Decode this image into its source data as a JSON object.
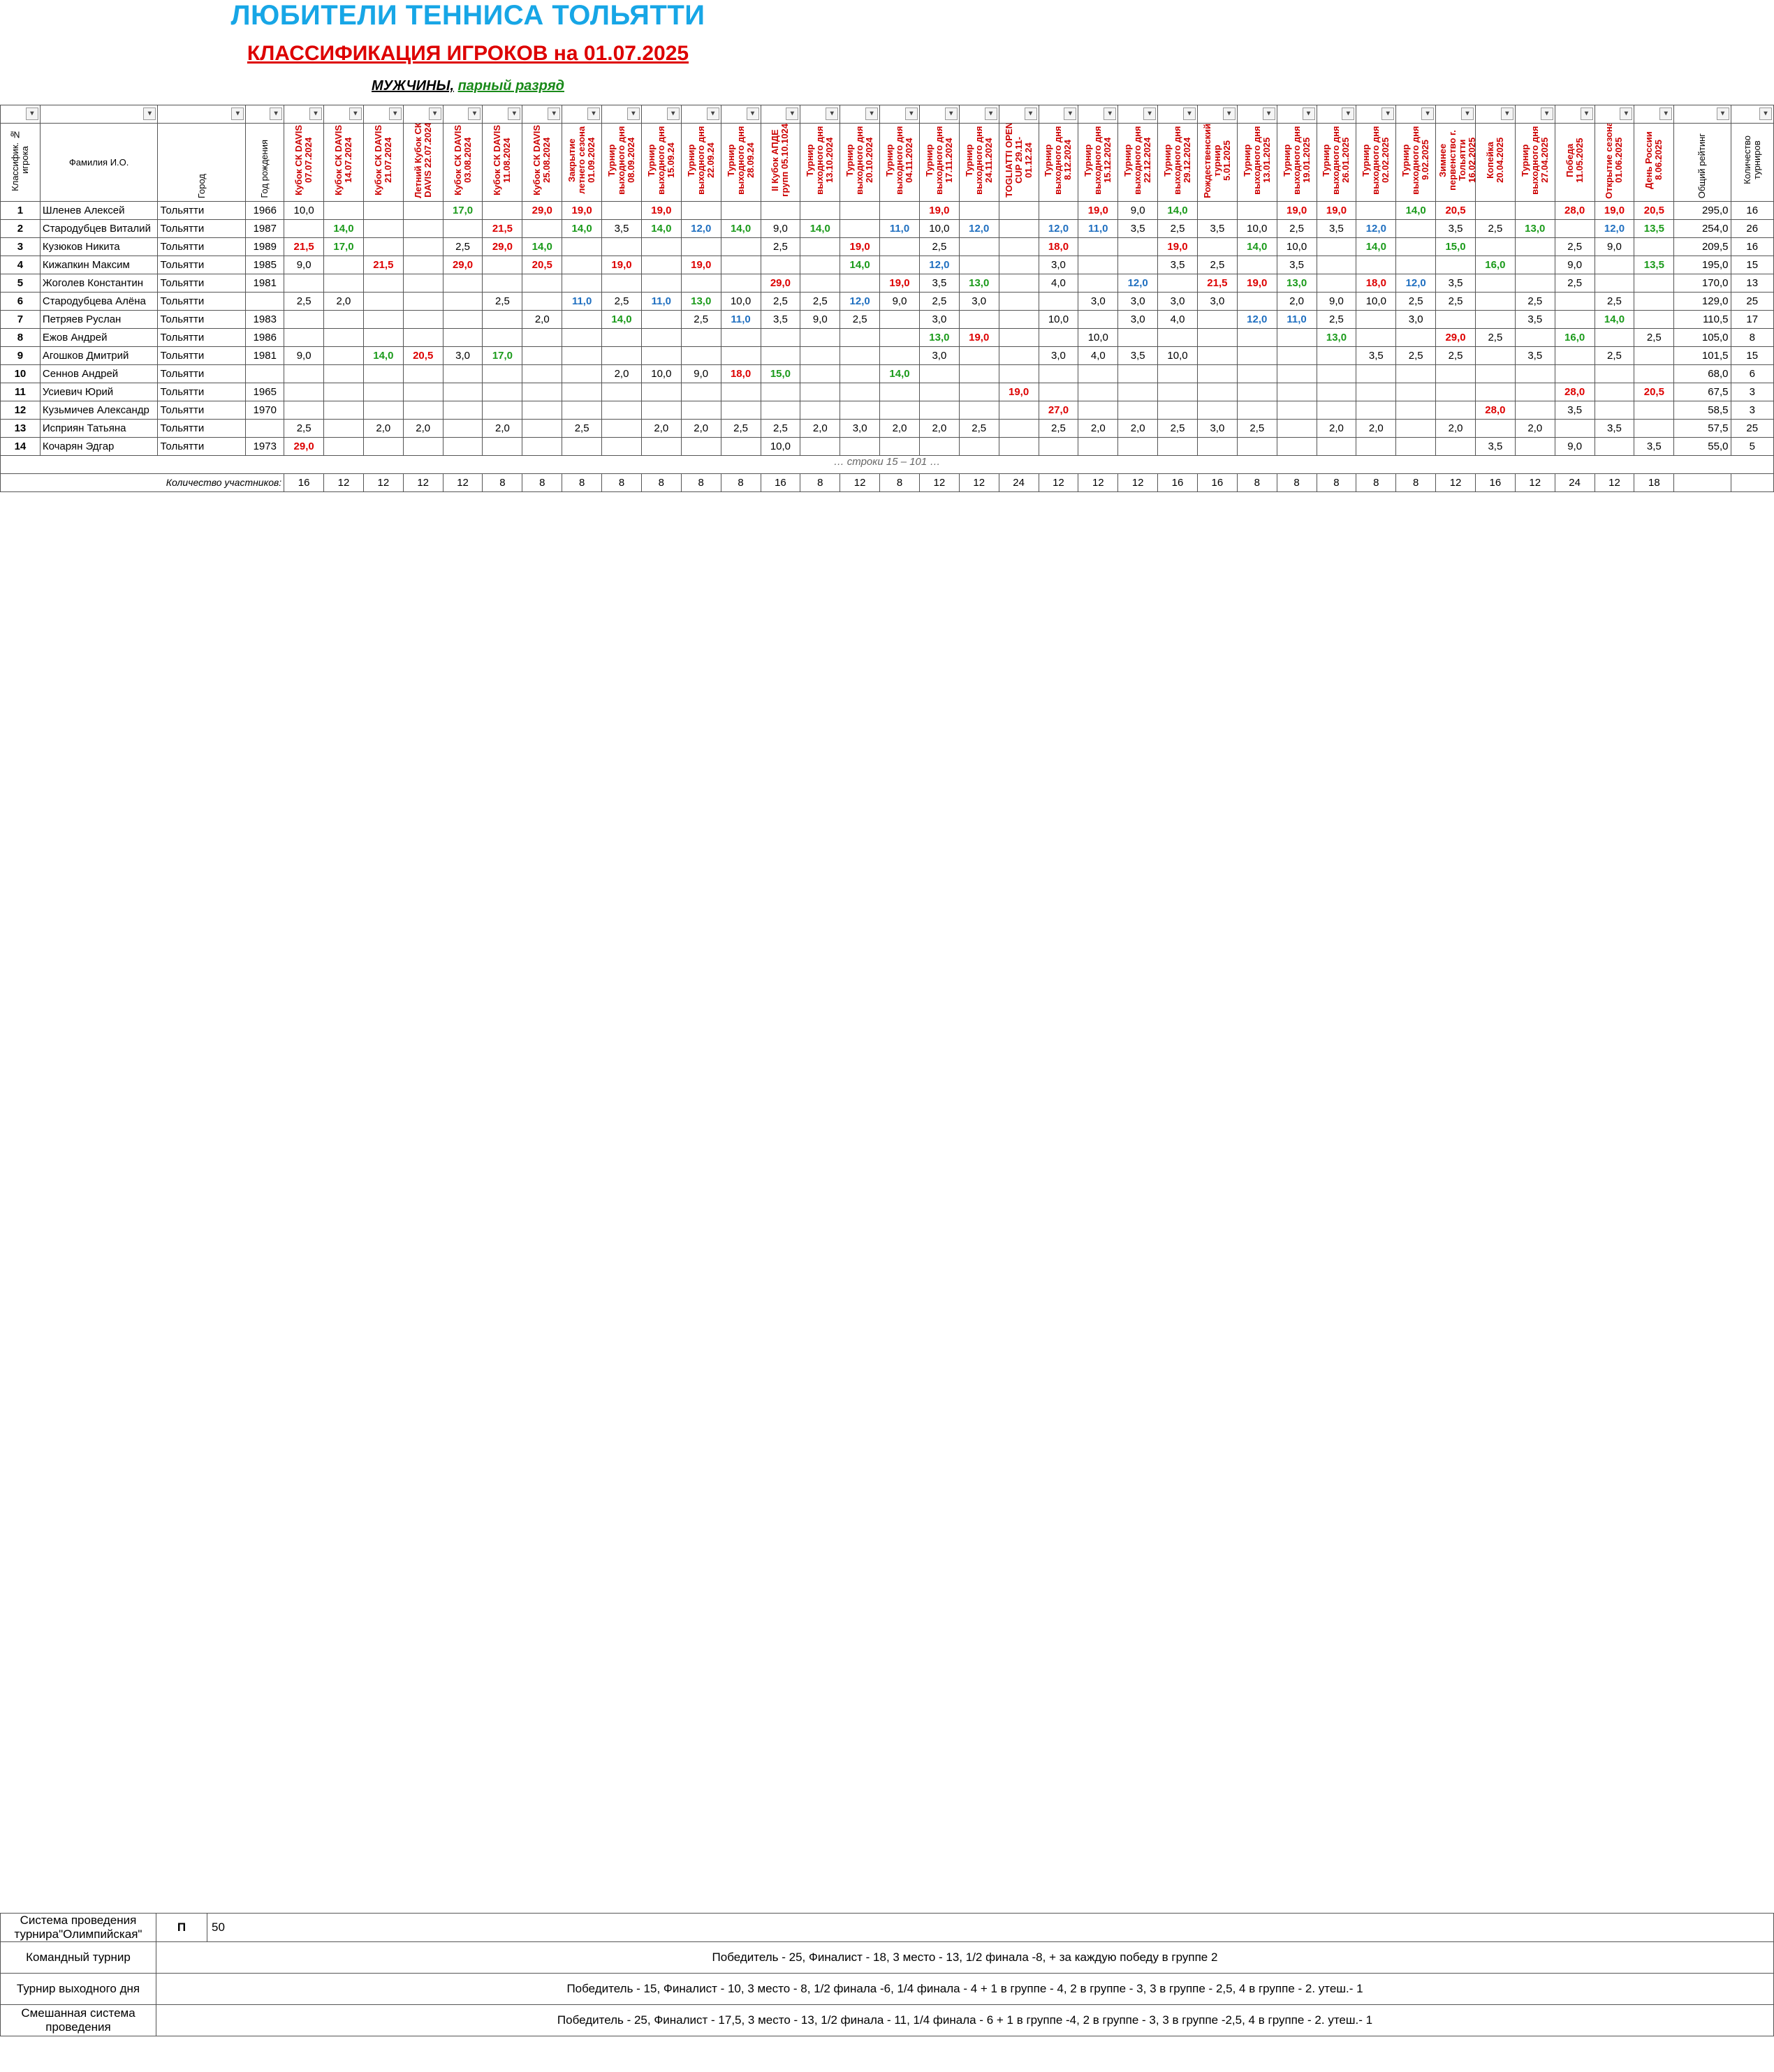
{
  "title": "ЛЮБИТЕЛИ ТЕННИСА ТОЛЬЯТТИ",
  "subtitle": "КЛАССИФИКАЦИЯ ИГРОКОВ на 01.07.2025",
  "section": {
    "category": "МУЖЧИНЫ,",
    "type": "парный разряд"
  },
  "columns": {
    "rank": "Классифик. № игрока",
    "name": "Фамилия И.О.",
    "city": "Город",
    "year": "Год рождения",
    "total": "Общий рейтинг",
    "count": "Количество турниров"
  },
  "tournaments": [
    "Кубок СК DAVIS 07.07.2024",
    "Кубок СК DAVIS 14.07.2024",
    "Кубок СК DAVIS 21.07.2024",
    "Летний Кубок СК DAVIS 22.07.2024",
    "Кубок СК DAVIS 03.08.2024",
    "Кубок СК DAVIS 11.08.2024",
    "Кубок СК DAVIS 25.08.2024",
    "Закрытие летнего сезона 01.09.2024",
    "Турнир выходного дня 08.09.2024",
    "Турнир выходного дня 15.09.24",
    "Турнир выходного дня 22.09.24",
    "Турнир выходного дня 28.09.24",
    "II Кубок АПДЕ групп 05.10.1024",
    "Турнир выходного дня 13.10.2024",
    "Турнир выходного дня 20.10.2024",
    "Турнир выходного дня 04.11.2024",
    "Турнир выходного дня 17.11.2024",
    "Турнир выходного дня 24.11.2024",
    "TOGLIATTI OPEN CUP 29.11-01.12.24",
    "Турнир выходного дня 8.12.2024",
    "Турнир выходного дня 15.12.2024",
    "Турнир выходного дня 22.12.2024",
    "Турнир выходного дня 29.12.2024",
    "Рождественский турнир 5.01.2025",
    "Турнир выходного дня 13.01.2025",
    "Турнир выходного дня 19.01.2025",
    "Турнир выходного дня 26.01.2025",
    "Турнир выходного дня 02.02.2025",
    "Турнир выходного дня 9.02.2025",
    "Зимнее первенство г. Тольятти 16.02.2025",
    "Копейка 20.04.2025",
    "Турнир выходного дня 27.04.2025",
    "Победа 11.05.2025",
    "Открытие сезона 01.06.2025",
    "День России 8.06.2025"
  ],
  "players": [
    {
      "rank": "1",
      "name": "Шленев Алексей",
      "city": "Тольятти",
      "year": "1966",
      "scores": [
        "10,0",
        "",
        "",
        "",
        "17,0",
        "",
        "29,0",
        "19,0",
        "",
        "19,0",
        "",
        "",
        "",
        "",
        "",
        "",
        "19,0",
        "",
        "",
        "",
        "19,0",
        "9,0",
        "14,0",
        "",
        "",
        "19,0",
        "19,0",
        "",
        "14,0",
        "20,5",
        "",
        "",
        "28,0",
        "19,0",
        "20,5"
      ],
      "total": "295,0",
      "count": "16"
    },
    {
      "rank": "2",
      "name": "Стародубцев Виталий",
      "city": "Тольятти",
      "year": "1987",
      "scores": [
        "",
        "14,0",
        "",
        "",
        "",
        "21,5",
        "",
        "14,0",
        "3,5",
        "14,0",
        "12,0",
        "14,0",
        "9,0",
        "14,0",
        "",
        "11,0",
        "10,0",
        "12,0",
        "",
        "12,0",
        "11,0",
        "3,5",
        "2,5",
        "3,5",
        "10,0",
        "2,5",
        "3,5",
        "12,0",
        "",
        "3,5",
        "2,5",
        "13,0",
        "",
        "12,0",
        "13,5"
      ],
      "total": "254,0",
      "count": "26"
    },
    {
      "rank": "3",
      "name": "Кузюков Никита",
      "city": "Тольятти",
      "year": "1989",
      "scores": [
        "21,5",
        "17,0",
        "",
        "",
        "2,5",
        "29,0",
        "14,0",
        "",
        "",
        "",
        "",
        "",
        "2,5",
        "",
        "19,0",
        "",
        "2,5",
        "",
        "",
        "18,0",
        "",
        "",
        "19,0",
        "",
        "14,0",
        "10,0",
        "",
        "14,0",
        "",
        "15,0",
        "",
        "",
        "2,5",
        "9,0",
        ""
      ],
      "total": "209,5",
      "count": "16"
    },
    {
      "rank": "4",
      "name": "Кижапкин Максим",
      "city": "Тольятти",
      "year": "1985",
      "scores": [
        "9,0",
        "",
        "21,5",
        "",
        "29,0",
        "",
        "20,5",
        "",
        "19,0",
        "",
        "19,0",
        "",
        "",
        "",
        "14,0",
        "",
        "12,0",
        "",
        "",
        "3,0",
        "",
        "",
        "3,5",
        "2,5",
        "",
        "3,5",
        "",
        "",
        "",
        "",
        "16,0",
        "",
        "9,0",
        "",
        "13,5"
      ],
      "total": "195,0",
      "count": "15"
    },
    {
      "rank": "5",
      "name": "Жоголев Константин",
      "city": "Тольятти",
      "year": "1981",
      "scores": [
        "",
        "",
        "",
        "",
        "",
        "",
        "",
        "",
        "",
        "",
        "",
        "",
        "29,0",
        "",
        "",
        "19,0",
        "3,5",
        "13,0",
        "",
        "4,0",
        "",
        "12,0",
        "",
        "21,5",
        "19,0",
        "13,0",
        "",
        "18,0",
        "12,0",
        "3,5",
        "",
        "",
        "2,5",
        "",
        ""
      ],
      "total": "170,0",
      "count": "13"
    },
    {
      "rank": "6",
      "name": "Стародубцева Алёна",
      "city": "Тольятти",
      "year": "",
      "scores": [
        "2,5",
        "2,0",
        "",
        "",
        "",
        "2,5",
        "",
        "11,0",
        "2,5",
        "11,0",
        "13,0",
        "10,0",
        "2,5",
        "2,5",
        "12,0",
        "9,0",
        "2,5",
        "3,0",
        "",
        "",
        "3,0",
        "3,0",
        "3,0",
        "3,0",
        "",
        "2,0",
        "9,0",
        "10,0",
        "2,5",
        "2,5",
        "",
        "2,5",
        "",
        "2,5",
        ""
      ],
      "total": "129,0",
      "count": "25"
    },
    {
      "rank": "7",
      "name": "Петряев Руслан",
      "city": "Тольятти",
      "year": "1983",
      "scores": [
        "",
        "",
        "",
        "",
        "",
        "",
        "2,0",
        "",
        "14,0",
        "",
        "2,5",
        "11,0",
        "3,5",
        "9,0",
        "2,5",
        "",
        "3,0",
        "",
        "",
        "10,0",
        "",
        "3,0",
        "4,0",
        "",
        "12,0",
        "11,0",
        "2,5",
        "",
        "3,0",
        "",
        "",
        "3,5",
        "",
        "14,0",
        ""
      ],
      "total": "110,5",
      "count": "17"
    },
    {
      "rank": "8",
      "name": "Ежов Андрей",
      "city": "Тольятти",
      "year": "1986",
      "scores": [
        "",
        "",
        "",
        "",
        "",
        "",
        "",
        "",
        "",
        "",
        "",
        "",
        "",
        "",
        "",
        "",
        "13,0",
        "19,0",
        "",
        "",
        "10,0",
        "",
        "",
        "",
        "",
        "",
        "13,0",
        "",
        "",
        "29,0",
        "2,5",
        "",
        "16,0",
        "",
        "2,5"
      ],
      "total": "105,0",
      "count": "8"
    },
    {
      "rank": "9",
      "name": "Агошков Дмитрий",
      "city": "Тольятти",
      "year": "1981",
      "scores": [
        "9,0",
        "",
        "14,0",
        "20,5",
        "3,0",
        "17,0",
        "",
        "",
        "",
        "",
        "",
        "",
        "",
        "",
        "",
        "",
        "3,0",
        "",
        "",
        "3,0",
        "4,0",
        "3,5",
        "10,0",
        "",
        "",
        "",
        "",
        "3,5",
        "2,5",
        "2,5",
        "",
        "3,5",
        "",
        "2,5",
        ""
      ],
      "total": "101,5",
      "count": "15"
    },
    {
      "rank": "10",
      "name": "Сеннов Андрей",
      "city": "Тольятти",
      "year": "",
      "scores": [
        "",
        "",
        "",
        "",
        "",
        "",
        "",
        "",
        "2,0",
        "10,0",
        "9,0",
        "18,0",
        "15,0",
        "",
        "",
        "14,0",
        "",
        "",
        "",
        "",
        "",
        "",
        "",
        "",
        "",
        "",
        "",
        "",
        "",
        "",
        "",
        "",
        "",
        "",
        ""
      ],
      "total": "68,0",
      "count": "6"
    },
    {
      "rank": "11",
      "name": "Усиевич Юрий",
      "city": "Тольятти",
      "year": "1965",
      "scores": [
        "",
        "",
        "",
        "",
        "",
        "",
        "",
        "",
        "",
        "",
        "",
        "",
        "",
        "",
        "",
        "",
        "",
        "",
        "19,0",
        "",
        "",
        "",
        "",
        "",
        "",
        "",
        "",
        "",
        "",
        "",
        "",
        "",
        "28,0",
        "",
        "20,5"
      ],
      "total": "67,5",
      "count": "3"
    },
    {
      "rank": "12",
      "name": "Кузьмичев Александр",
      "city": "Тольятти",
      "year": "1970",
      "scores": [
        "",
        "",
        "",
        "",
        "",
        "",
        "",
        "",
        "",
        "",
        "",
        "",
        "",
        "",
        "",
        "",
        "",
        "",
        "",
        "27,0",
        "",
        "",
        "",
        "",
        "",
        "",
        "",
        "",
        "",
        "",
        "28,0",
        "",
        "3,5",
        "",
        ""
      ],
      "total": "58,5",
      "count": "3"
    },
    {
      "rank": "13",
      "name": "Исприян Татьяна",
      "city": "Тольятти",
      "year": "",
      "scores": [
        "2,5",
        "",
        "2,0",
        "2,0",
        "",
        "2,0",
        "",
        "2,5",
        "",
        "2,0",
        "2,0",
        "2,5",
        "2,5",
        "2,0",
        "3,0",
        "2,0",
        "2,0",
        "2,5",
        "",
        "2,5",
        "2,0",
        "2,0",
        "2,5",
        "3,0",
        "2,5",
        "",
        "2,0",
        "2,0",
        "",
        "2,0",
        "",
        "2,0",
        "",
        "3,5",
        ""
      ],
      "total": "57,5",
      "count": "25"
    },
    {
      "rank": "14",
      "name": "Кочарян Эдгар",
      "city": "Тольятти",
      "year": "1973",
      "scores": [
        "29,0",
        "",
        "",
        "",
        "",
        "",
        "",
        "",
        "",
        "",
        "",
        "",
        "10,0",
        "",
        "",
        "",
        "",
        "",
        "",
        "",
        "",
        "",
        "",
        "",
        "",
        "",
        "",
        "",
        "",
        "",
        "3,5",
        "",
        "9,0",
        "",
        "3,5"
      ],
      "total": "55,0",
      "count": "5"
    }
  ],
  "more_rows_note": "… строки 15 – 101 …",
  "participants_label": "Количество участников:",
  "participants": [
    "16",
    "12",
    "12",
    "12",
    "12",
    "8",
    "8",
    "8",
    "8",
    "8",
    "8",
    "8",
    "16",
    "8",
    "12",
    "8",
    "12",
    "12",
    "24",
    "12",
    "12",
    "12",
    "16",
    "16",
    "8",
    "8",
    "8",
    "8",
    "8",
    "12",
    "16",
    "12",
    "24",
    "12",
    "18"
  ],
  "legend": [
    {
      "label": "Система проведения турнира\"Олимпийская\"",
      "value": "П",
      "extra": "50"
    },
    {
      "label": "Командный турнир",
      "value": "Победитель - 25, Финалист - 18, 3 место - 13, 1/2 финала -8,  + за каждую победу в группе 2"
    },
    {
      "label": "Турнир выходного дня",
      "value": "Победитель - 15, Финалист - 10, 3 место - 8, 1/2 финала -6, 1/4 финала - 4 + 1 в группе - 4, 2 в группе - 3, 3 в группе - 2,5, 4 в группе - 2. утеш.- 1"
    },
    {
      "label": "Смешанная система проведения",
      "value": "Победитель - 25, Финалист - 17,5, 3 место - 13, 1/2 финала - 11, 1/4 финала - 6 + 1 в группе -4, 2 в группе - 3, 3 в группе -2,5, 4 в группе - 2. утеш.- 1"
    }
  ],
  "colors": {
    "title": "#17a6e6",
    "subtitle": "#d00000",
    "red": "#d00000",
    "blue": "#1f6fc0",
    "green": "#1a9a1a"
  }
}
